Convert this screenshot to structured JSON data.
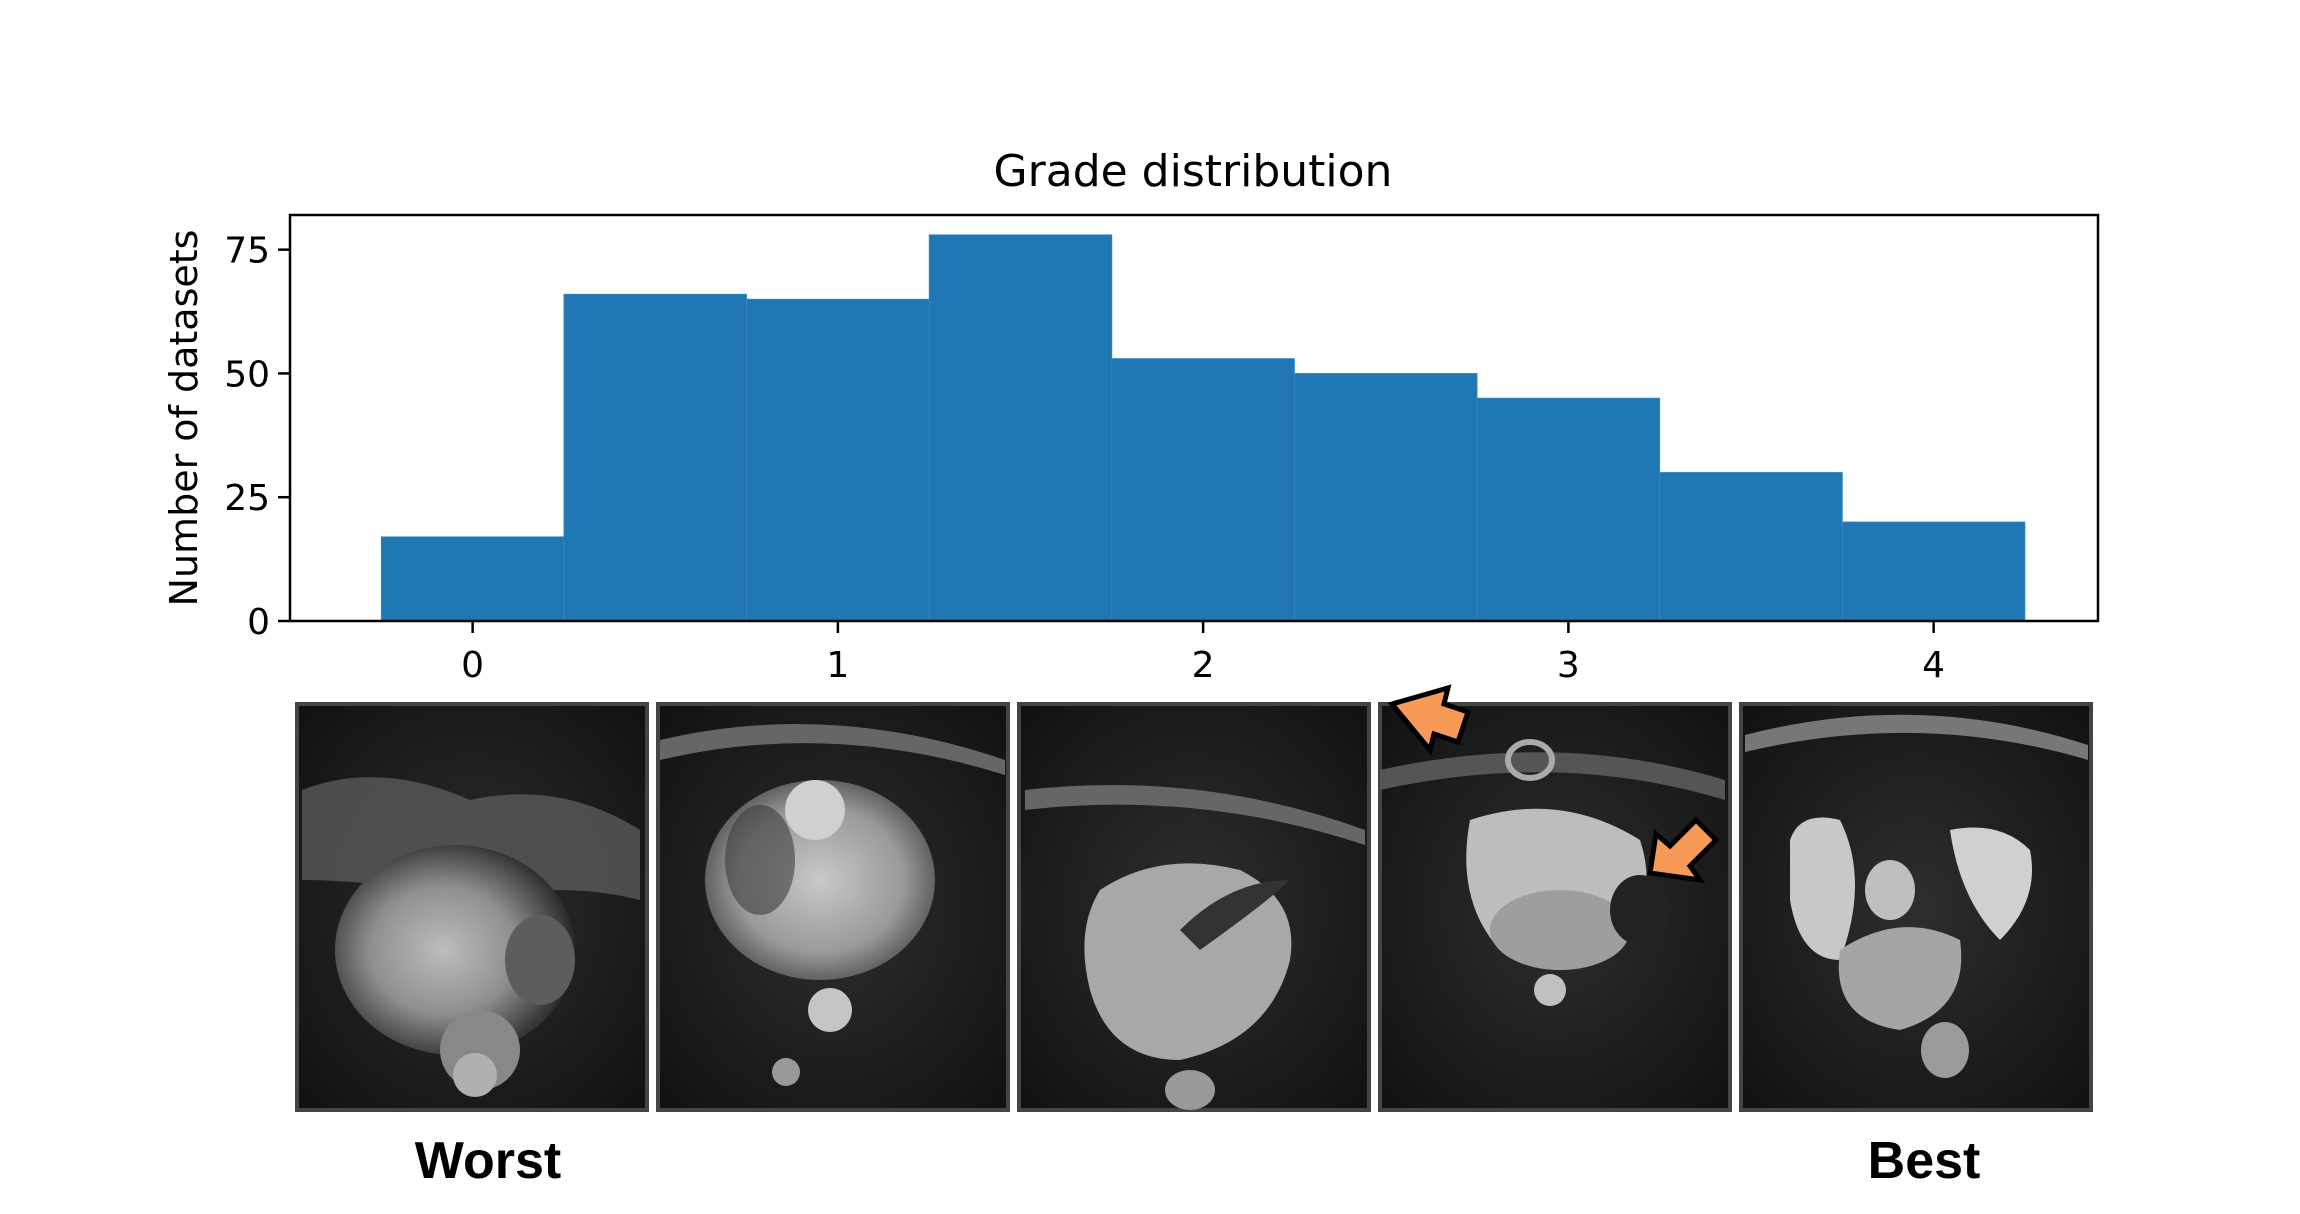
{
  "chart_data": {
    "type": "bar",
    "title": "Grade distribution",
    "xlabel": "",
    "ylabel": "Number of datasets",
    "bin_width": 0.5,
    "bin_centers": [
      0,
      0.5,
      1,
      1.5,
      2,
      2.5,
      3,
      3.5,
      4
    ],
    "values": [
      17,
      66,
      65,
      78,
      53,
      50,
      45,
      30,
      20
    ],
    "xlim": [
      -0.5,
      4.45
    ],
    "ylim": [
      0,
      82
    ],
    "xticks": [
      0,
      1,
      2,
      3,
      4
    ],
    "yticks": [
      0,
      25,
      50,
      75
    ],
    "bar_color": "#1f77b4",
    "grid": false
  },
  "thumbnails": [
    {
      "grade": 0
    },
    {
      "grade": 1
    },
    {
      "grade": 2
    },
    {
      "grade": 3,
      "annotation_arrows": 2,
      "arrow_color": "#f79a58"
    },
    {
      "grade": 4
    }
  ],
  "labels": {
    "worst": "Worst",
    "best": "Best"
  }
}
